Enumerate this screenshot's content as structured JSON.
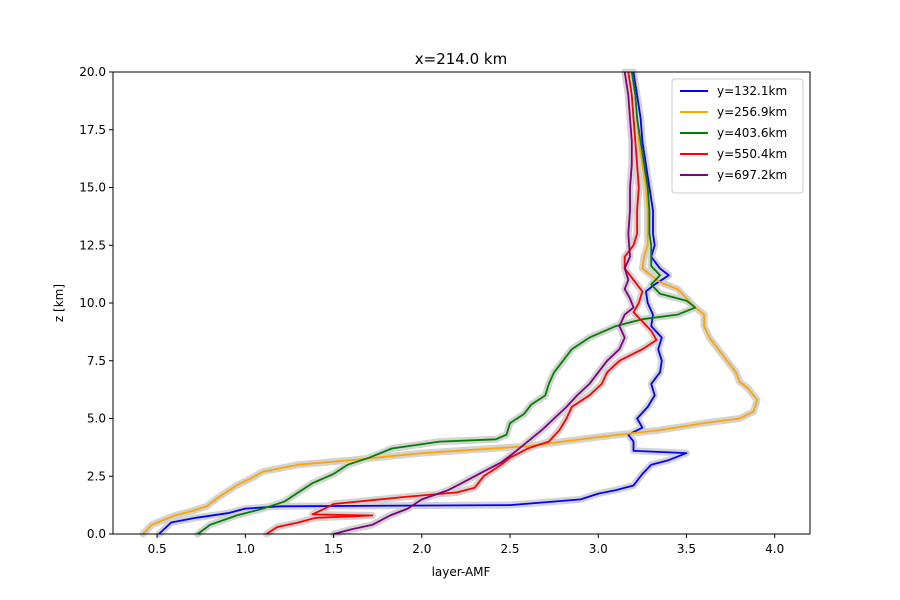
{
  "chart_data": {
    "type": "line",
    "title": "x=214.0 km",
    "xlabel": "layer-AMF",
    "ylabel": "z [km]",
    "xlim": [
      0.25,
      4.2
    ],
    "ylim": [
      0,
      20
    ],
    "xticks": [
      "0.5",
      "1.0",
      "1.5",
      "2.0",
      "2.5",
      "3.0",
      "3.5",
      "4.0"
    ],
    "yticks": [
      "0.0",
      "2.5",
      "5.0",
      "7.5",
      "10.0",
      "12.5",
      "15.0",
      "17.5",
      "20.0"
    ],
    "grid": false,
    "legend_position": "top-right",
    "uncertainty_band_color": "#d3d3d3",
    "series": [
      {
        "name": "y=132.1km",
        "color": "#0000ff",
        "points": [
          [
            0.51,
            0.0
          ],
          [
            0.58,
            0.5
          ],
          [
            0.72,
            0.7
          ],
          [
            0.9,
            0.9
          ],
          [
            1.0,
            1.1
          ],
          [
            1.2,
            1.2
          ],
          [
            2.5,
            1.25
          ],
          [
            2.9,
            1.5
          ],
          [
            3.0,
            1.75
          ],
          [
            3.1,
            1.9
          ],
          [
            3.2,
            2.1
          ],
          [
            3.25,
            2.6
          ],
          [
            3.3,
            3.0
          ],
          [
            3.4,
            3.2
          ],
          [
            3.5,
            3.5
          ],
          [
            3.2,
            3.6
          ],
          [
            3.2,
            4.0
          ],
          [
            3.17,
            4.3
          ],
          [
            3.25,
            4.6
          ],
          [
            3.22,
            5.0
          ],
          [
            3.28,
            5.5
          ],
          [
            3.32,
            6.0
          ],
          [
            3.3,
            6.5
          ],
          [
            3.35,
            7.0
          ],
          [
            3.36,
            7.5
          ],
          [
            3.34,
            8.0
          ],
          [
            3.36,
            8.5
          ],
          [
            3.3,
            9.0
          ],
          [
            3.31,
            9.5
          ],
          [
            3.28,
            10.0
          ],
          [
            3.27,
            10.5
          ],
          [
            3.32,
            10.8
          ],
          [
            3.4,
            11.2
          ],
          [
            3.35,
            11.5
          ],
          [
            3.3,
            12.0
          ],
          [
            3.32,
            12.5
          ],
          [
            3.31,
            13.0
          ],
          [
            3.31,
            14.0
          ],
          [
            3.29,
            15.0
          ],
          [
            3.27,
            16.0
          ],
          [
            3.25,
            17.0
          ],
          [
            3.24,
            18.0
          ],
          [
            3.22,
            19.0
          ],
          [
            3.2,
            20.0
          ]
        ]
      },
      {
        "name": "y=256.9km",
        "color": "#ffa500",
        "points": [
          [
            0.42,
            0.0
          ],
          [
            0.47,
            0.4
          ],
          [
            0.6,
            0.8
          ],
          [
            0.7,
            1.0
          ],
          [
            0.78,
            1.2
          ],
          [
            0.85,
            1.6
          ],
          [
            0.95,
            2.1
          ],
          [
            1.03,
            2.4
          ],
          [
            1.1,
            2.7
          ],
          [
            1.3,
            3.0
          ],
          [
            1.6,
            3.2
          ],
          [
            2.0,
            3.5
          ],
          [
            2.6,
            3.8
          ],
          [
            3.0,
            4.2
          ],
          [
            3.35,
            4.5
          ],
          [
            3.6,
            4.8
          ],
          [
            3.8,
            5.0
          ],
          [
            3.88,
            5.3
          ],
          [
            3.9,
            5.8
          ],
          [
            3.85,
            6.3
          ],
          [
            3.8,
            6.6
          ],
          [
            3.78,
            7.0
          ],
          [
            3.73,
            7.5
          ],
          [
            3.68,
            8.0
          ],
          [
            3.63,
            8.5
          ],
          [
            3.6,
            9.0
          ],
          [
            3.6,
            9.5
          ],
          [
            3.55,
            9.8
          ],
          [
            3.5,
            10.2
          ],
          [
            3.45,
            10.6
          ],
          [
            3.35,
            10.9
          ],
          [
            3.3,
            11.2
          ],
          [
            3.25,
            11.5
          ],
          [
            3.26,
            12.0
          ],
          [
            3.28,
            12.5
          ],
          [
            3.28,
            13.0
          ],
          [
            3.28,
            14.0
          ],
          [
            3.27,
            15.0
          ],
          [
            3.25,
            16.0
          ],
          [
            3.23,
            17.0
          ],
          [
            3.22,
            18.0
          ],
          [
            3.21,
            19.0
          ],
          [
            3.19,
            20.0
          ]
        ]
      },
      {
        "name": "y=403.6km",
        "color": "#008000",
        "points": [
          [
            0.73,
            0.0
          ],
          [
            0.8,
            0.4
          ],
          [
            0.95,
            0.8
          ],
          [
            1.1,
            1.1
          ],
          [
            1.22,
            1.4
          ],
          [
            1.3,
            1.8
          ],
          [
            1.38,
            2.2
          ],
          [
            1.5,
            2.6
          ],
          [
            1.58,
            3.0
          ],
          [
            1.7,
            3.3
          ],
          [
            1.83,
            3.7
          ],
          [
            2.1,
            4.0
          ],
          [
            2.42,
            4.1
          ],
          [
            2.48,
            4.3
          ],
          [
            2.5,
            4.8
          ],
          [
            2.58,
            5.2
          ],
          [
            2.62,
            5.6
          ],
          [
            2.7,
            6.0
          ],
          [
            2.72,
            6.5
          ],
          [
            2.75,
            7.0
          ],
          [
            2.8,
            7.5
          ],
          [
            2.85,
            8.0
          ],
          [
            2.95,
            8.5
          ],
          [
            3.1,
            9.0
          ],
          [
            3.25,
            9.3
          ],
          [
            3.45,
            9.5
          ],
          [
            3.55,
            9.8
          ],
          [
            3.5,
            10.1
          ],
          [
            3.35,
            10.4
          ],
          [
            3.3,
            10.8
          ],
          [
            3.35,
            11.2
          ],
          [
            3.3,
            11.6
          ],
          [
            3.3,
            12.0
          ],
          [
            3.3,
            12.5
          ],
          [
            3.29,
            13.0
          ],
          [
            3.29,
            14.0
          ],
          [
            3.28,
            15.0
          ],
          [
            3.26,
            16.0
          ],
          [
            3.24,
            17.0
          ],
          [
            3.22,
            18.0
          ],
          [
            3.21,
            19.0
          ],
          [
            3.19,
            20.0
          ]
        ]
      },
      {
        "name": "y=550.4km",
        "color": "#ff0000",
        "points": [
          [
            1.12,
            0.0
          ],
          [
            1.18,
            0.3
          ],
          [
            1.3,
            0.5
          ],
          [
            1.4,
            0.7
          ],
          [
            1.72,
            0.8
          ],
          [
            1.38,
            0.85
          ],
          [
            1.45,
            1.1
          ],
          [
            1.5,
            1.3
          ],
          [
            1.9,
            1.6
          ],
          [
            2.2,
            1.8
          ],
          [
            2.3,
            2.0
          ],
          [
            2.35,
            2.5
          ],
          [
            2.45,
            3.0
          ],
          [
            2.5,
            3.3
          ],
          [
            2.6,
            3.7
          ],
          [
            2.72,
            4.0
          ],
          [
            2.78,
            4.5
          ],
          [
            2.82,
            5.0
          ],
          [
            2.85,
            5.5
          ],
          [
            2.95,
            6.0
          ],
          [
            3.02,
            6.5
          ],
          [
            3.05,
            7.0
          ],
          [
            3.12,
            7.5
          ],
          [
            3.25,
            8.0
          ],
          [
            3.33,
            8.4
          ],
          [
            3.3,
            8.8
          ],
          [
            3.25,
            9.2
          ],
          [
            3.2,
            9.6
          ],
          [
            3.23,
            10.0
          ],
          [
            3.25,
            10.5
          ],
          [
            3.2,
            11.0
          ],
          [
            3.15,
            11.5
          ],
          [
            3.15,
            12.0
          ],
          [
            3.2,
            12.5
          ],
          [
            3.22,
            13.0
          ],
          [
            3.22,
            14.0
          ],
          [
            3.23,
            15.0
          ],
          [
            3.22,
            16.0
          ],
          [
            3.21,
            17.0
          ],
          [
            3.2,
            18.0
          ],
          [
            3.19,
            19.0
          ],
          [
            3.17,
            20.0
          ]
        ]
      },
      {
        "name": "y=697.2km",
        "color": "#800080",
        "points": [
          [
            1.5,
            0.0
          ],
          [
            1.6,
            0.2
          ],
          [
            1.72,
            0.4
          ],
          [
            1.82,
            0.8
          ],
          [
            1.92,
            1.1
          ],
          [
            2.0,
            1.5
          ],
          [
            2.15,
            1.9
          ],
          [
            2.25,
            2.3
          ],
          [
            2.35,
            2.7
          ],
          [
            2.45,
            3.1
          ],
          [
            2.52,
            3.5
          ],
          [
            2.6,
            4.0
          ],
          [
            2.68,
            4.5
          ],
          [
            2.75,
            5.0
          ],
          [
            2.82,
            5.5
          ],
          [
            2.88,
            6.0
          ],
          [
            2.95,
            6.5
          ],
          [
            3.0,
            7.0
          ],
          [
            3.05,
            7.5
          ],
          [
            3.12,
            8.0
          ],
          [
            3.15,
            8.5
          ],
          [
            3.12,
            9.0
          ],
          [
            3.15,
            9.5
          ],
          [
            3.2,
            9.8
          ],
          [
            3.18,
            10.2
          ],
          [
            3.15,
            10.6
          ],
          [
            3.17,
            11.0
          ],
          [
            3.15,
            11.5
          ],
          [
            3.18,
            12.0
          ],
          [
            3.17,
            13.0
          ],
          [
            3.18,
            14.0
          ],
          [
            3.18,
            15.0
          ],
          [
            3.19,
            16.0
          ],
          [
            3.19,
            17.0
          ],
          [
            3.18,
            18.0
          ],
          [
            3.17,
            19.0
          ],
          [
            3.15,
            20.0
          ]
        ]
      }
    ]
  }
}
